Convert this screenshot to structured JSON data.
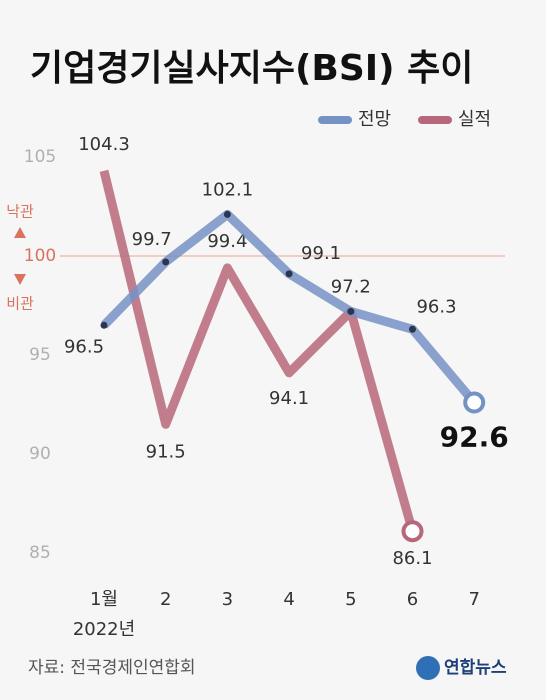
{
  "chart_data": {
    "type": "line",
    "title": "기업경기실사지수(BSI) 추이",
    "categories": [
      "1월",
      "2",
      "3",
      "4",
      "5",
      "6",
      "7"
    ],
    "x_note": "2022년",
    "series": [
      {
        "name": "전망",
        "color": "#7592c4",
        "values": [
          96.5,
          99.7,
          102.1,
          99.1,
          97.2,
          96.3,
          92.6
        ]
      },
      {
        "name": "실적",
        "color": "#b8677a",
        "values": [
          104.3,
          91.5,
          99.4,
          94.1,
          97.2,
          86.1,
          null
        ]
      }
    ],
    "ylim": [
      83,
      106
    ],
    "yticks": [
      85,
      90,
      95,
      100,
      105
    ],
    "grid": false,
    "legend": "top-right",
    "reference_line": {
      "value": 100,
      "color": "#f0b4a8",
      "above": "낙관",
      "below": "비관",
      "label_color": "#d9735e"
    },
    "source": "자료: 전국경제인연합회",
    "logo": "연합뉴스"
  }
}
